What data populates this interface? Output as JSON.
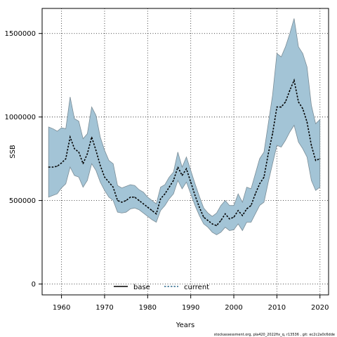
{
  "chart_data": {
    "type": "area",
    "xlabel": "Years",
    "ylabel": "SSB",
    "xlim": [
      1955.5,
      2022
    ],
    "ylim": [
      -65000,
      1650000
    ],
    "x_ticks": [
      1960,
      1970,
      1980,
      1990,
      2000,
      2010,
      2020
    ],
    "y_ticks": [
      0,
      500000,
      1000000,
      1500000
    ],
    "grid": true,
    "legend_position": "bottom-center",
    "x": [
      1957,
      1958,
      1959,
      1960,
      1961,
      1962,
      1963,
      1964,
      1965,
      1966,
      1967,
      1968,
      1969,
      1970,
      1971,
      1972,
      1973,
      1974,
      1975,
      1976,
      1977,
      1978,
      1979,
      1980,
      1981,
      1982,
      1983,
      1984,
      1985,
      1986,
      1987,
      1988,
      1989,
      1990,
      1991,
      1992,
      1993,
      1994,
      1995,
      1996,
      1997,
      1998,
      1999,
      2000,
      2001,
      2002,
      2003,
      2004,
      2005,
      2006,
      2007,
      2008,
      2009,
      2010,
      2011,
      2012,
      2013,
      2014,
      2015,
      2016,
      2017,
      2018,
      2019,
      2020
    ],
    "series": [
      {
        "name": "current",
        "color": "#000000",
        "band_color": "#a3c4d6",
        "values": [
          700000,
          700000,
          705000,
          725000,
          750000,
          880000,
          810000,
          790000,
          720000,
          780000,
          880000,
          800000,
          710000,
          640000,
          610000,
          580000,
          500000,
          490000,
          500000,
          520000,
          520000,
          500000,
          480000,
          460000,
          440000,
          420000,
          510000,
          540000,
          580000,
          620000,
          700000,
          650000,
          690000,
          610000,
          530000,
          460000,
          400000,
          380000,
          360000,
          350000,
          380000,
          420000,
          390000,
          400000,
          440000,
          410000,
          450000,
          470000,
          540000,
          600000,
          640000,
          780000,
          900000,
          1060000,
          1060000,
          1090000,
          1160000,
          1220000,
          1090000,
          1050000,
          970000,
          830000,
          740000,
          750000
        ],
        "lower": [
          520000,
          530000,
          540000,
          575000,
          600000,
          700000,
          650000,
          640000,
          580000,
          620000,
          720000,
          680000,
          610000,
          560000,
          520000,
          500000,
          430000,
          425000,
          430000,
          450000,
          455000,
          445000,
          425000,
          405000,
          385000,
          370000,
          440000,
          470000,
          510000,
          540000,
          620000,
          570000,
          610000,
          540000,
          470000,
          410000,
          360000,
          340000,
          310000,
          295000,
          310000,
          340000,
          320000,
          325000,
          360000,
          320000,
          370000,
          370000,
          420000,
          470000,
          490000,
          610000,
          720000,
          830000,
          820000,
          860000,
          910000,
          950000,
          850000,
          810000,
          760000,
          620000,
          560000,
          580000
        ],
        "upper": [
          940000,
          930000,
          915000,
          935000,
          930000,
          1120000,
          990000,
          975000,
          870000,
          900000,
          1060000,
          1010000,
          880000,
          800000,
          740000,
          720000,
          590000,
          575000,
          585000,
          595000,
          590000,
          565000,
          550000,
          520000,
          500000,
          480000,
          580000,
          595000,
          640000,
          670000,
          790000,
          700000,
          760000,
          680000,
          600000,
          525000,
          455000,
          425000,
          405000,
          425000,
          470000,
          500000,
          470000,
          470000,
          540000,
          490000,
          580000,
          570000,
          660000,
          750000,
          790000,
          960000,
          1130000,
          1380000,
          1360000,
          1420000,
          1500000,
          1590000,
          1420000,
          1380000,
          1300000,
          1070000,
          960000,
          985000
        ]
      }
    ],
    "legend": [
      {
        "label": "base",
        "style": "solid",
        "color": "#000000"
      },
      {
        "label": "current",
        "style": "dashed",
        "color": "#2f6a8c"
      }
    ]
  },
  "footnote": "stockassessment.org,  pla420_2022fix_q,  r13536 ,  git: ec2c2a0c6dde"
}
